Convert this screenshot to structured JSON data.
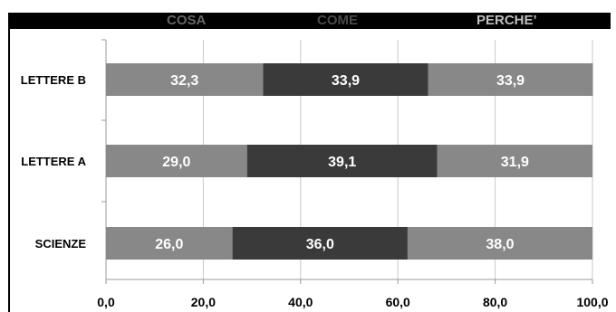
{
  "chart_data": {
    "type": "bar",
    "orientation": "horizontal",
    "stacked": true,
    "categories": [
      "LETTERE B",
      "LETTERE A",
      "SCIENZE"
    ],
    "series": [
      {
        "name": "COSA",
        "values": [
          32.3,
          29.0,
          26.0
        ],
        "labels": [
          "32,3",
          "29,0",
          "26,0"
        ],
        "color": "#888888"
      },
      {
        "name": "COME",
        "values": [
          33.9,
          39.1,
          36.0
        ],
        "labels": [
          "33,9",
          "39,1",
          "36,0"
        ],
        "color": "#3a3a3a"
      },
      {
        "name": "PERCHE'",
        "values": [
          33.9,
          31.9,
          38.0
        ],
        "labels": [
          "33,9",
          "31,9",
          "38,0"
        ],
        "color": "#888888"
      }
    ],
    "xlim": [
      0,
      100
    ],
    "x_ticks": [
      "0,0",
      "20,0",
      "40,0",
      "60,0",
      "80,0",
      "100,0"
    ],
    "grid": true,
    "legend_position": "top",
    "legend": {
      "cosa": "COSA",
      "come": "COME",
      "perche": "PERCHE’"
    }
  }
}
